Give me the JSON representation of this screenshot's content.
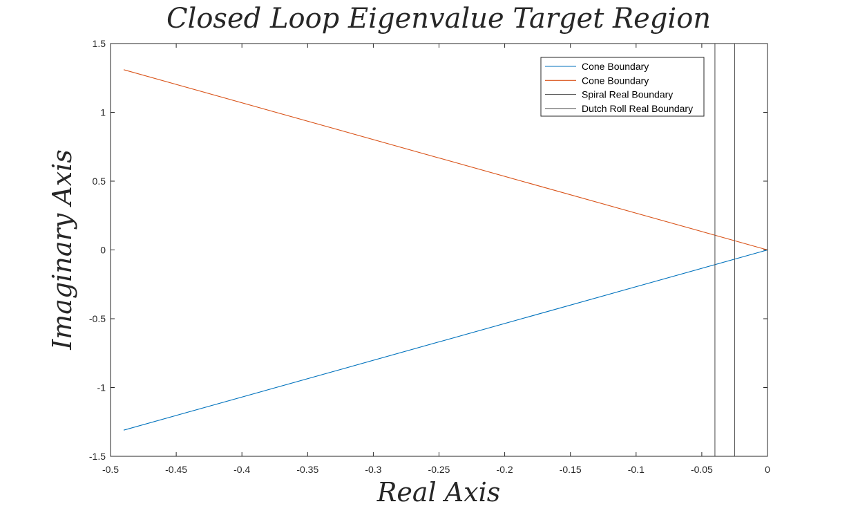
{
  "chart_data": {
    "type": "line",
    "title": "Closed Loop Eigenvalue Target Region",
    "xlabel": "Real Axis",
    "ylabel": "Imaginary Axis",
    "xlim": [
      -0.5,
      0
    ],
    "ylim": [
      -1.5,
      1.5
    ],
    "xticks": [
      -0.5,
      -0.45,
      -0.4,
      -0.35,
      -0.3,
      -0.25,
      -0.2,
      -0.15,
      -0.1,
      -0.05,
      0
    ],
    "xtick_labels": [
      "-0.5",
      "-0.45",
      "-0.4",
      "-0.35",
      "-0.3",
      "-0.25",
      "-0.2",
      "-0.15",
      "-0.1",
      "-0.05",
      "0"
    ],
    "yticks": [
      -1.5,
      -1,
      -0.5,
      0,
      0.5,
      1,
      1.5
    ],
    "ytick_labels": [
      "-1.5",
      "-1",
      "-0.5",
      "0",
      "0.5",
      "1",
      "1.5"
    ],
    "grid": false,
    "legend_position": "top-right",
    "series": [
      {
        "name": "Cone Boundary",
        "color": "#0072BD",
        "x": [
          -0.49,
          0
        ],
        "y": [
          -1.31,
          0
        ]
      },
      {
        "name": "Cone Boundary",
        "color": "#D95319",
        "x": [
          -0.49,
          0
        ],
        "y": [
          1.31,
          0
        ]
      },
      {
        "name": "Spiral Real Boundary",
        "color": "#5a5a5a",
        "x": [
          -0.04,
          -0.04
        ],
        "y": [
          -1.5,
          1.5
        ]
      },
      {
        "name": "Dutch Roll Real Boundary",
        "color": "#5a5a5a",
        "x": [
          -0.025,
          -0.025
        ],
        "y": [
          -1.5,
          1.5
        ]
      }
    ]
  }
}
